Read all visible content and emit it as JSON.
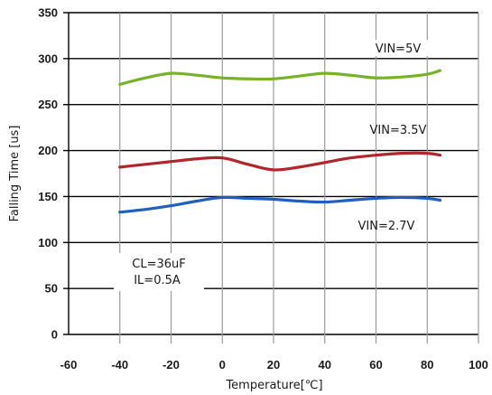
{
  "chart_data": {
    "type": "line",
    "xlabel": "Temperature[℃]",
    "ylabel": "Falling Time [us]",
    "xlim": [
      -60,
      100
    ],
    "ylim": [
      0,
      350
    ],
    "x_ticks": [
      -60,
      -40,
      -20,
      0,
      20,
      40,
      60,
      80,
      100
    ],
    "y_ticks": [
      0,
      50,
      100,
      150,
      200,
      250,
      300,
      350
    ],
    "grid": {
      "horizontal": true,
      "vertical": true
    },
    "series": [
      {
        "name": "VIN=5V",
        "color": "#77b22a",
        "x": [
          -40,
          -30,
          -20,
          -10,
          0,
          10,
          20,
          30,
          40,
          50,
          60,
          70,
          80,
          85
        ],
        "y": [
          272,
          279,
          284,
          282,
          279,
          278,
          278,
          281,
          284,
          282,
          279,
          280,
          283,
          287
        ]
      },
      {
        "name": "VIN=3.5V",
        "color": "#b0262a",
        "x": [
          -40,
          -30,
          -20,
          -10,
          0,
          10,
          20,
          30,
          40,
          50,
          60,
          70,
          80,
          85
        ],
        "y": [
          182,
          185,
          188,
          191,
          192,
          185,
          179,
          182,
          187,
          192,
          195,
          197,
          197,
          195
        ]
      },
      {
        "name": "VIN=2.7V",
        "color": "#1f5fbf",
        "x": [
          -40,
          -30,
          -20,
          -10,
          0,
          10,
          20,
          30,
          40,
          50,
          60,
          70,
          80,
          85
        ],
        "y": [
          133,
          136,
          140,
          145,
          149,
          148,
          147,
          145,
          144,
          146,
          148,
          149,
          148,
          146
        ]
      }
    ],
    "annotations": [
      {
        "id": "vin5",
        "text": "VIN=5V"
      },
      {
        "id": "vin35",
        "text": "VIN=3.5V"
      },
      {
        "id": "vin27",
        "text": "VIN=2.7V"
      },
      {
        "id": "cl",
        "text": "CL=36uF"
      },
      {
        "id": "il",
        "text": "IL=0.5A"
      }
    ]
  }
}
